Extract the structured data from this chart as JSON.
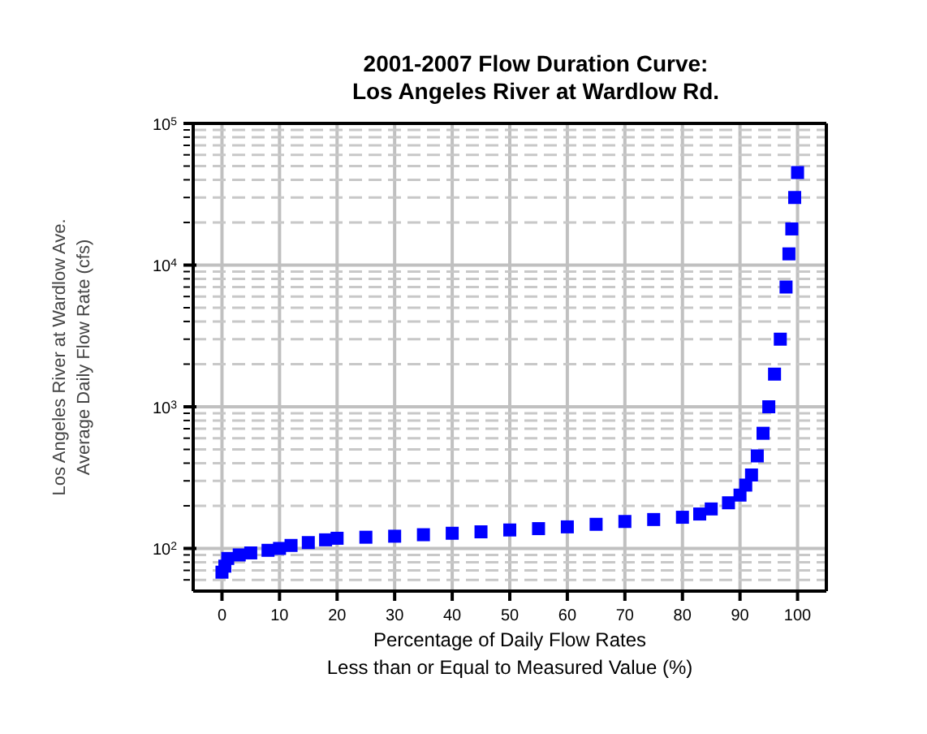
{
  "chart_data": {
    "type": "scatter",
    "title": "2001-2007 Flow Duration Curve:\nLos Angeles River at Wardlow Rd.",
    "xlabel": "Percentage of Daily Flow Rates\nLess than or Equal to Measured Value (%)",
    "ylabel": "Los Angeles River at Wardlow Ave.\nAverage Daily Flow Rate (cfs)",
    "log": "y",
    "grid": true,
    "marker": "square",
    "legend": false,
    "xlim": [
      -5,
      105
    ],
    "xticks": [
      0,
      10,
      20,
      30,
      40,
      50,
      60,
      70,
      80,
      90,
      100
    ],
    "ylim": [
      50,
      100000
    ],
    "yticks": [
      {
        "value": 60,
        "label": null
      },
      {
        "value": 70,
        "label": null
      },
      {
        "value": 80,
        "label": null
      },
      {
        "value": 90,
        "label": null
      },
      {
        "value": 100,
        "label": "10$^{2}$"
      },
      {
        "value": 200,
        "label": null
      },
      {
        "value": 300,
        "label": null
      },
      {
        "value": 400,
        "label": null
      },
      {
        "value": 500,
        "label": null
      },
      {
        "value": 600,
        "label": null
      },
      {
        "value": 700,
        "label": null
      },
      {
        "value": 800,
        "label": null
      },
      {
        "value": 900,
        "label": null
      },
      {
        "value": 1000,
        "label": "10$^{3}$"
      },
      {
        "value": 2000,
        "label": null
      },
      {
        "value": 3000,
        "label": null
      },
      {
        "value": 4000,
        "label": null
      },
      {
        "value": 5000,
        "label": null
      },
      {
        "value": 6000,
        "label": null
      },
      {
        "value": 7000,
        "label": null
      },
      {
        "value": 8000,
        "label": null
      },
      {
        "value": 9000,
        "label": null
      },
      {
        "value": 10000,
        "label": "10$^{4}$"
      },
      {
        "value": 20000,
        "label": null
      },
      {
        "value": 30000,
        "label": null
      },
      {
        "value": 40000,
        "label": null
      },
      {
        "value": 50000,
        "label": null
      },
      {
        "value": 60000,
        "label": null
      },
      {
        "value": 70000,
        "label": null
      },
      {
        "value": 80000,
        "label": null
      },
      {
        "value": 90000,
        "label": null
      },
      {
        "value": 100000,
        "label": "10$^{5}$"
      }
    ],
    "series": [
      {
        "color": "#0000ff",
        "x": [
          0,
          0.5,
          1,
          3,
          5,
          8,
          10,
          12,
          15,
          18,
          20,
          25,
          30,
          35,
          40,
          45,
          50,
          55,
          60,
          65,
          70,
          75,
          80,
          83,
          85,
          88,
          90,
          91,
          92,
          93,
          94,
          95,
          96,
          97,
          98,
          98.5,
          99,
          99.5,
          100
        ],
        "values": [
          68,
          75,
          85,
          90,
          93,
          97,
          100,
          105,
          110,
          115,
          118,
          120,
          122,
          125,
          128,
          131,
          135,
          138,
          142,
          148,
          155,
          160,
          166,
          175,
          190,
          210,
          238,
          280,
          330,
          450,
          650,
          1000,
          1700,
          3000,
          7000,
          12000,
          18000,
          30000,
          45000
        ]
      }
    ]
  }
}
